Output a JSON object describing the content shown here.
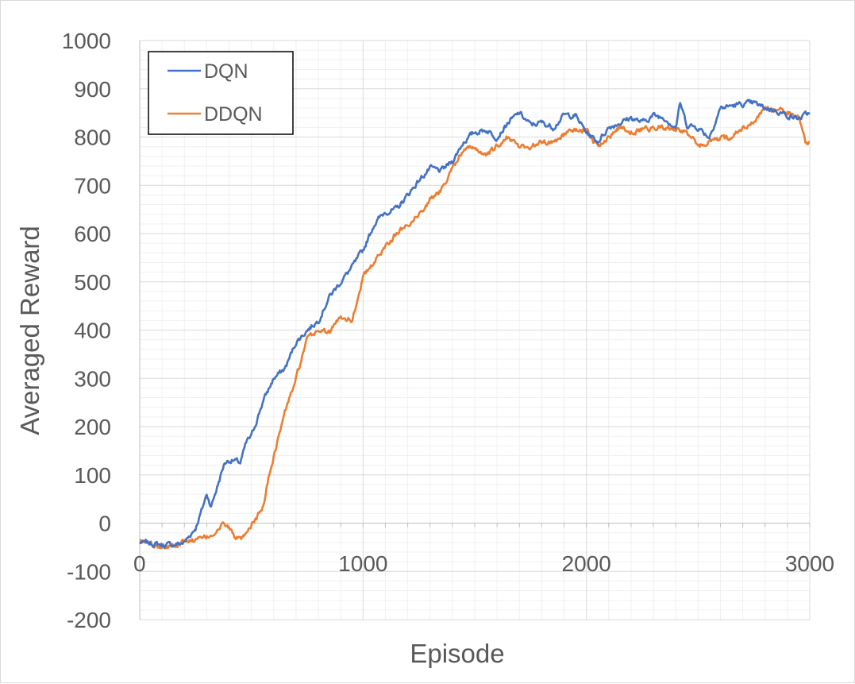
{
  "chart_data": {
    "type": "line",
    "xlabel": "Episode",
    "ylabel": "Averaged Reward",
    "xlim": [
      0,
      3000
    ],
    "ylim": [
      -200,
      1000
    ],
    "x_ticks": [
      0,
      1000,
      2000,
      3000
    ],
    "y_ticks": [
      1000,
      900,
      800,
      700,
      600,
      500,
      400,
      300,
      200,
      100,
      0,
      -100,
      -200
    ],
    "grid": true,
    "legend_position": "top-left",
    "series": [
      {
        "name": "DQN",
        "color": "#4472C4",
        "x": [
          0,
          50,
          100,
          150,
          200,
          250,
          280,
          300,
          320,
          350,
          380,
          400,
          420,
          450,
          480,
          500,
          550,
          600,
          650,
          700,
          750,
          800,
          850,
          900,
          950,
          1000,
          1050,
          1100,
          1150,
          1200,
          1250,
          1300,
          1350,
          1400,
          1450,
          1500,
          1550,
          1600,
          1650,
          1700,
          1750,
          1800,
          1850,
          1900,
          1950,
          2000,
          2050,
          2100,
          2150,
          2200,
          2250,
          2300,
          2350,
          2400,
          2420,
          2450,
          2500,
          2550,
          2600,
          2650,
          2700,
          2750,
          2800,
          2850,
          2900,
          2950,
          3000
        ],
        "y": [
          -40,
          -42,
          -45,
          -45,
          -40,
          -10,
          30,
          60,
          35,
          80,
          125,
          130,
          130,
          125,
          170,
          180,
          250,
          300,
          320,
          375,
          400,
          420,
          470,
          500,
          530,
          565,
          620,
          645,
          650,
          680,
          710,
          735,
          730,
          750,
          790,
          810,
          815,
          800,
          830,
          850,
          825,
          830,
          820,
          845,
          845,
          810,
          790,
          820,
          830,
          840,
          830,
          845,
          840,
          820,
          870,
          825,
          820,
          800,
          860,
          865,
          868,
          870,
          860,
          855,
          845,
          838,
          850
        ]
      },
      {
        "name": "DDQN",
        "color": "#ED7D31",
        "x": [
          0,
          50,
          100,
          150,
          200,
          250,
          300,
          350,
          380,
          400,
          430,
          450,
          480,
          500,
          550,
          580,
          600,
          650,
          700,
          750,
          800,
          850,
          900,
          950,
          1000,
          1050,
          1100,
          1150,
          1200,
          1250,
          1300,
          1350,
          1400,
          1450,
          1500,
          1550,
          1600,
          1650,
          1700,
          1750,
          1800,
          1850,
          1900,
          1950,
          2000,
          2050,
          2100,
          2150,
          2200,
          2250,
          2300,
          2350,
          2400,
          2450,
          2500,
          2550,
          2600,
          2650,
          2700,
          2750,
          2800,
          2850,
          2900,
          2950,
          2980,
          3000
        ],
        "y": [
          -40,
          -40,
          -48,
          -45,
          -38,
          -35,
          -30,
          -15,
          0,
          -10,
          -30,
          -35,
          -25,
          -5,
          30,
          100,
          140,
          230,
          300,
          380,
          400,
          395,
          430,
          420,
          510,
          540,
          575,
          600,
          620,
          640,
          670,
          690,
          740,
          770,
          780,
          760,
          780,
          800,
          780,
          780,
          790,
          790,
          805,
          815,
          815,
          780,
          800,
          820,
          810,
          815,
          820,
          820,
          815,
          810,
          780,
          790,
          795,
          800,
          820,
          830,
          860,
          855,
          850,
          845,
          790,
          790
        ]
      }
    ]
  }
}
